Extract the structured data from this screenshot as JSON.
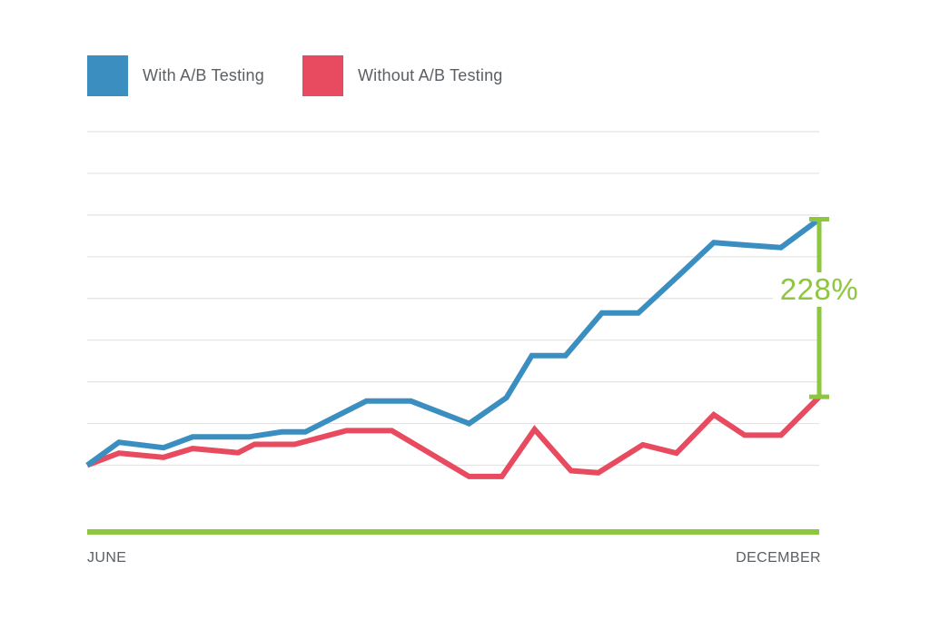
{
  "legend": {
    "with_label": "With A/B Testing",
    "without_label": "Without A/B Testing"
  },
  "colors": {
    "with": "#3b8fc0",
    "without": "#e84a5f",
    "accent": "#8dc63f",
    "grid": "#e3e3e3",
    "text": "#5b5f63"
  },
  "annotation": "228%",
  "chart_data": {
    "type": "line",
    "x_start_label": "JUNE",
    "x_end_label": "DECEMBER",
    "x": [
      0,
      35,
      84,
      116,
      178,
      214,
      240,
      307,
      356,
      420,
      461,
      489,
      526,
      566,
      606,
      648,
      689,
      723,
      763,
      805
    ],
    "ylim": [
      -1.6,
      8
    ],
    "grid_values": [
      0,
      1,
      2,
      3,
      4,
      5,
      6,
      7,
      8
    ],
    "series": [
      {
        "name": "With A/B Testing",
        "points": [
          [
            0,
            0
          ],
          [
            35,
            0.55
          ],
          [
            84,
            0.42
          ],
          [
            116,
            0.68
          ],
          [
            178,
            0.68
          ],
          [
            214,
            0.8
          ],
          [
            240,
            0.8
          ],
          [
            307,
            1.54
          ],
          [
            356,
            1.54
          ],
          [
            420,
            1.0
          ],
          [
            461,
            1.62
          ],
          [
            489,
            2.63
          ],
          [
            526,
            2.63
          ],
          [
            566,
            3.65
          ],
          [
            606,
            3.65
          ],
          [
            648,
            4.5
          ],
          [
            689,
            5.34
          ],
          [
            723,
            5.28
          ],
          [
            763,
            5.22
          ],
          [
            805,
            5.9
          ]
        ]
      },
      {
        "name": "Without A/B Testing",
        "points": [
          [
            0,
            0
          ],
          [
            35,
            0.29
          ],
          [
            84,
            0.19
          ],
          [
            116,
            0.4
          ],
          [
            166,
            0.3
          ],
          [
            184,
            0.5
          ],
          [
            228,
            0.5
          ],
          [
            285,
            0.83
          ],
          [
            335,
            0.83
          ],
          [
            420,
            -0.27
          ],
          [
            456,
            -0.27
          ],
          [
            492,
            0.86
          ],
          [
            532,
            -0.13
          ],
          [
            562,
            -0.18
          ],
          [
            611,
            0.49
          ],
          [
            648,
            0.29
          ],
          [
            689,
            1.21
          ],
          [
            723,
            0.72
          ],
          [
            763,
            0.72
          ],
          [
            805,
            1.64
          ]
        ]
      }
    ],
    "range_marker": {
      "x": 805,
      "from": 1.64,
      "to": 5.9
    }
  }
}
